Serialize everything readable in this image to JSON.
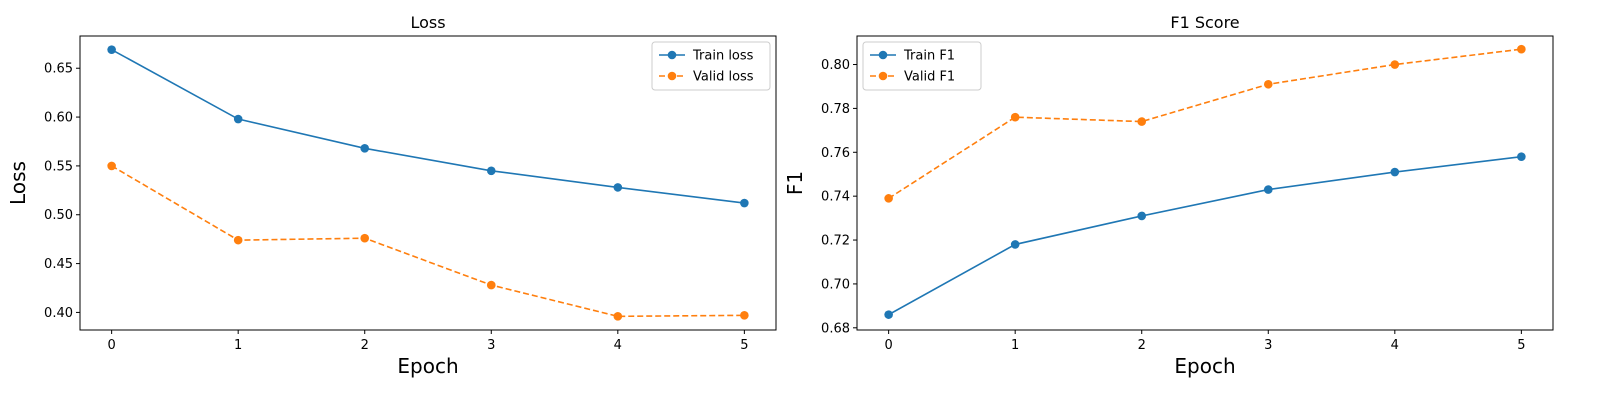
{
  "chart_data": [
    {
      "type": "line",
      "title": "Loss",
      "xlabel": "Epoch",
      "ylabel": "Loss",
      "x": [
        0,
        1,
        2,
        3,
        4,
        5
      ],
      "xlim": [
        -0.25,
        5.25
      ],
      "ylim": [
        0.382,
        0.683
      ],
      "yticks": [
        0.4,
        0.45,
        0.5,
        0.55,
        0.6,
        0.65
      ],
      "ytick_labels": [
        "0.40",
        "0.45",
        "0.50",
        "0.55",
        "0.60",
        "0.65"
      ],
      "xticks": [
        0,
        1,
        2,
        3,
        4,
        5
      ],
      "xtick_labels": [
        "0",
        "1",
        "2",
        "3",
        "4",
        "5"
      ],
      "grid": false,
      "legend_position": "top-right",
      "series": [
        {
          "name": "Train loss",
          "values": [
            0.669,
            0.598,
            0.568,
            0.545,
            0.528,
            0.512
          ],
          "color": "#1f77b4",
          "style": "solid"
        },
        {
          "name": "Valid loss",
          "values": [
            0.55,
            0.474,
            0.476,
            0.428,
            0.396,
            0.397
          ],
          "color": "#ff7f0e",
          "style": "dashed"
        }
      ]
    },
    {
      "type": "line",
      "title": "F1 Score",
      "xlabel": "Epoch",
      "ylabel": "F1",
      "x": [
        0,
        1,
        2,
        3,
        4,
        5
      ],
      "xlim": [
        -0.25,
        5.25
      ],
      "ylim": [
        0.679,
        0.813
      ],
      "yticks": [
        0.68,
        0.7,
        0.72,
        0.74,
        0.76,
        0.78,
        0.8
      ],
      "ytick_labels": [
        "0.68",
        "0.70",
        "0.72",
        "0.74",
        "0.76",
        "0.78",
        "0.80"
      ],
      "xticks": [
        0,
        1,
        2,
        3,
        4,
        5
      ],
      "xtick_labels": [
        "0",
        "1",
        "2",
        "3",
        "4",
        "5"
      ],
      "grid": false,
      "legend_position": "top-left",
      "series": [
        {
          "name": "Train F1",
          "values": [
            0.686,
            0.718,
            0.731,
            0.743,
            0.751,
            0.758
          ],
          "color": "#1f77b4",
          "style": "solid"
        },
        {
          "name": "Valid F1",
          "values": [
            0.739,
            0.776,
            0.774,
            0.791,
            0.8,
            0.807
          ],
          "color": "#ff7f0e",
          "style": "dashed"
        }
      ]
    }
  ]
}
